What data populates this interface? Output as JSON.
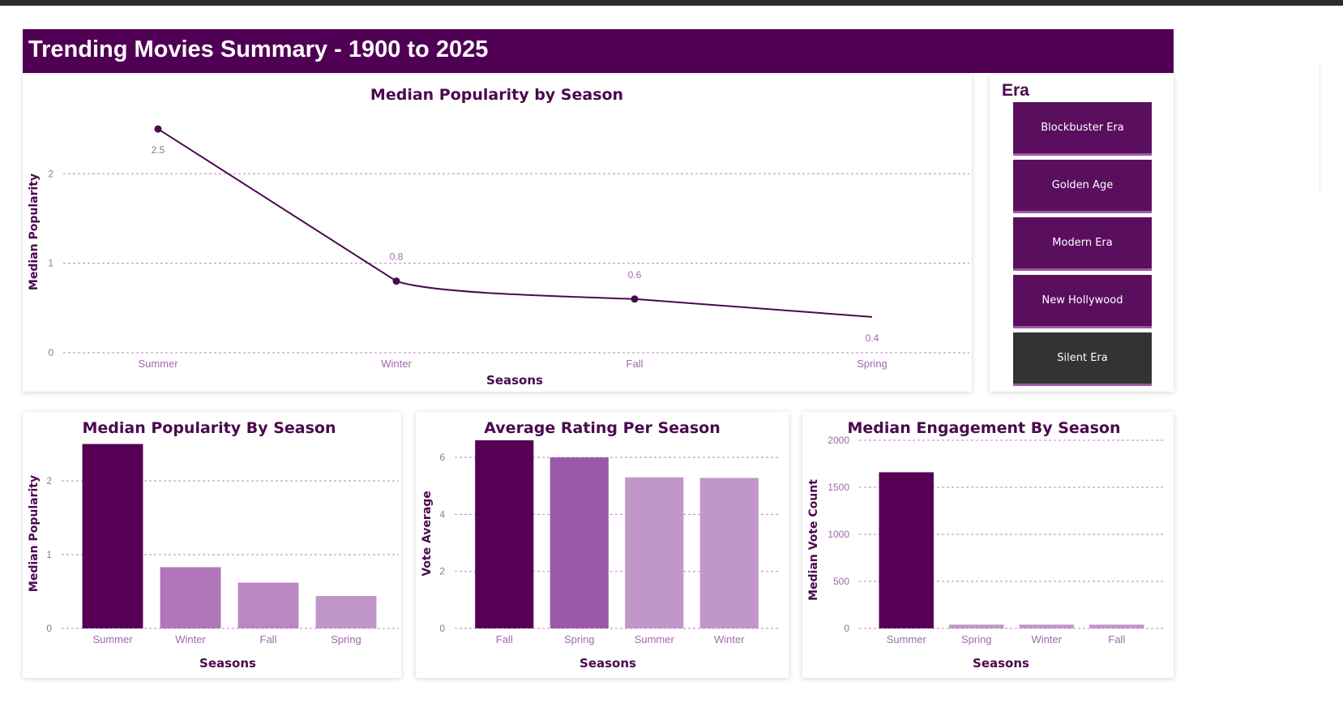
{
  "header": {
    "title": "Trending Movies Summary - 1900 to 2025"
  },
  "era_slicer": {
    "title": "Era",
    "items": [
      "Blockbuster Era",
      "Golden Age",
      "Modern Era",
      "New Hollywood",
      "Silent Era"
    ],
    "dark_item_index": 4
  },
  "colors": {
    "brand": "#500054",
    "line": "#4a0a4e",
    "dark": "#550055",
    "medium": "#9b5aa8",
    "light": "#c197c9",
    "axis_text": "#a06aaa",
    "slicer_dark": "#333333"
  },
  "chart_data": [
    {
      "type": "line",
      "title": "Median Popularity by Season",
      "xlabel": "Seasons",
      "ylabel": "Median Popularity",
      "categories": [
        "Summer",
        "Winter",
        "Fall",
        "Spring"
      ],
      "values": [
        2.5,
        0.8,
        0.6,
        0.4
      ],
      "data_labels": [
        "2.5",
        "0.8",
        "0.6",
        "0.4"
      ],
      "ylim": [
        0,
        2.7
      ],
      "yticks": [
        0,
        1,
        2
      ],
      "grid": true
    },
    {
      "type": "bar",
      "title": "Median Popularity By Season",
      "xlabel": "Seasons",
      "ylabel": "Median Popularity",
      "categories": [
        "Summer",
        "Winter",
        "Fall",
        "Spring"
      ],
      "values": [
        2.5,
        0.83,
        0.62,
        0.44
      ],
      "ylim": [
        0,
        2.55
      ],
      "yticks": [
        0,
        1,
        2
      ],
      "grid": true
    },
    {
      "type": "bar",
      "title": "Average Rating Per Season",
      "xlabel": "Seasons",
      "ylabel": "Vote Average",
      "categories": [
        "Fall",
        "Spring",
        "Summer",
        "Winter"
      ],
      "values": [
        6.6,
        6.0,
        5.3,
        5.28
      ],
      "ylim": [
        0,
        6.6
      ],
      "yticks": [
        0,
        2,
        4,
        6
      ],
      "grid": true
    },
    {
      "type": "bar",
      "title": "Median Engagement By Season",
      "xlabel": "Seasons",
      "ylabel": "Median Vote Count",
      "categories": [
        "Summer",
        "Spring",
        "Winter",
        "Fall"
      ],
      "values": [
        1660,
        40,
        40,
        40
      ],
      "ylim": [
        0,
        2000
      ],
      "yticks": [
        0,
        500,
        1000,
        1500,
        2000
      ],
      "grid": true
    }
  ]
}
